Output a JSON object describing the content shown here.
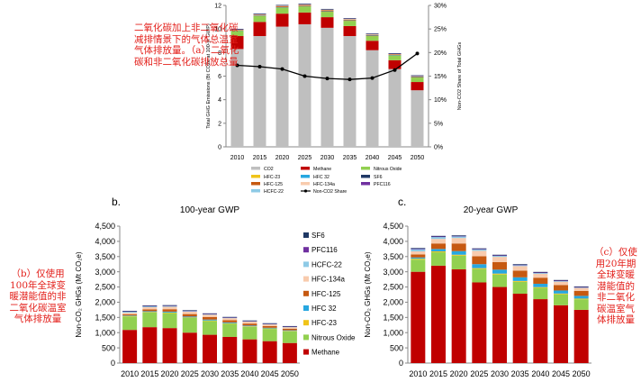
{
  "annotations": {
    "a": "二氧化碳加上非二氧化碳减排情景下的气体总温室气体排放量。（a）二氧化碳和非二氧化碳排放总量",
    "b": "（b）仅使用100年全球变暖潜能值的非二氧化碳温室气体排放量",
    "c": "（c）仅使用20年期全球变暖潜能值的非二氧化碳温室气体排放量"
  },
  "colors": {
    "CO2": "#bfbfbf",
    "Methane": "#c00000",
    "Nitrous Oxide": "#92d050",
    "HFC-23": "#f0c419",
    "HFC 32": "#27a7e0",
    "HFC-125": "#c65911",
    "HFC-134a": "#f8cbad",
    "HCFC-22": "#8ecae6",
    "PFC116": "#7030a0",
    "SF6": "#1f3864",
    "Non-CO2 Share": "#000000"
  },
  "chart_data": [
    {
      "id": "a",
      "type": "bar",
      "panel_label": "",
      "title": "",
      "categories": [
        "2010",
        "2015",
        "2020",
        "2025",
        "2030",
        "2035",
        "2040",
        "2045",
        "2050"
      ],
      "ylabel": "Total GHG Emissions (Bt CO2e at 100-yr GWP)",
      "y2label": "Non-CO2 Share of Total GHGs",
      "ylim": [
        0,
        12
      ],
      "yticks": [
        0,
        2,
        4,
        6,
        8,
        10,
        12
      ],
      "y2lim": [
        0,
        30
      ],
      "y2ticks": [
        "0%",
        "5%",
        "10%",
        "15%",
        "20%",
        "25%",
        "30%"
      ],
      "stacked": true,
      "series": [
        {
          "name": "CO2",
          "values": [
            8.3,
            9.4,
            10.2,
            10.4,
            10.1,
            9.4,
            8.2,
            6.6,
            4.8
          ]
        },
        {
          "name": "Methane",
          "values": [
            1.1,
            1.2,
            1.1,
            1.0,
            0.9,
            0.85,
            0.8,
            0.75,
            0.7
          ]
        },
        {
          "name": "Nitrous Oxide",
          "values": [
            0.45,
            0.5,
            0.5,
            0.5,
            0.45,
            0.43,
            0.4,
            0.4,
            0.38
          ]
        },
        {
          "name": "HFC-23",
          "values": [
            0.02,
            0.02,
            0.02,
            0.02,
            0.02,
            0.02,
            0.02,
            0.02,
            0.02
          ]
        },
        {
          "name": "HFC 32",
          "values": [
            0.01,
            0.02,
            0.03,
            0.03,
            0.03,
            0.03,
            0.02,
            0.02,
            0.02
          ]
        },
        {
          "name": "HFC-125",
          "values": [
            0.03,
            0.05,
            0.07,
            0.08,
            0.08,
            0.07,
            0.06,
            0.05,
            0.05
          ]
        },
        {
          "name": "HFC-134a",
          "values": [
            0.05,
            0.07,
            0.08,
            0.08,
            0.08,
            0.07,
            0.07,
            0.06,
            0.06
          ]
        },
        {
          "name": "HCFC-22",
          "values": [
            0.03,
            0.03,
            0.02,
            0.02,
            0.02,
            0.02,
            0.02,
            0.02,
            0.02
          ]
        },
        {
          "name": "PFC116",
          "values": [
            0.01,
            0.01,
            0.01,
            0.01,
            0.01,
            0.01,
            0.01,
            0.01,
            0.01
          ]
        },
        {
          "name": "SF6",
          "values": [
            0.01,
            0.01,
            0.01,
            0.01,
            0.01,
            0.01,
            0.01,
            0.01,
            0.01
          ]
        }
      ],
      "line": {
        "name": "Non-CO2 Share",
        "axis": "y2",
        "values": [
          17.3,
          17.0,
          16.5,
          15.0,
          14.5,
          14.3,
          14.6,
          16.3,
          19.8
        ]
      },
      "legend_order": [
        "CO2",
        "Methane",
        "Nitrous Oxide",
        "HFC-23",
        "HFC 32",
        "SF6",
        "HFC-125",
        "HFC-134a",
        "PFC116",
        "HCFC-22",
        "Non-CO2 Share"
      ],
      "legend": "bottom"
    },
    {
      "id": "b",
      "type": "bar",
      "panel_label": "b.",
      "title": "100-year GWP",
      "categories": [
        "2010",
        "2015",
        "2020",
        "2025",
        "2030",
        "2035",
        "2040",
        "2045",
        "2050"
      ],
      "ylabel": "Non-CO₂ GHGs (Mt CO₂e)",
      "ylim": [
        0,
        4500
      ],
      "yticks": [
        "0",
        "500",
        "1,000",
        "1,500",
        "2,000",
        "2,500",
        "3,000",
        "3,500",
        "4,000",
        "4,500"
      ],
      "stacked": true,
      "series": [
        {
          "name": "Methane",
          "values": [
            1090,
            1180,
            1150,
            1000,
            930,
            860,
            780,
            720,
            660
          ]
        },
        {
          "name": "Nitrous Oxide",
          "values": [
            440,
            480,
            490,
            480,
            450,
            430,
            410,
            400,
            380
          ]
        },
        {
          "name": "HFC-23",
          "values": [
            20,
            20,
            20,
            20,
            20,
            18,
            18,
            18,
            18
          ]
        },
        {
          "name": "HFC 32",
          "values": [
            15,
            25,
            30,
            30,
            30,
            28,
            25,
            22,
            20
          ]
        },
        {
          "name": "HFC-125",
          "values": [
            40,
            60,
            80,
            80,
            80,
            70,
            65,
            55,
            50
          ]
        },
        {
          "name": "HFC-134a",
          "values": [
            50,
            70,
            80,
            80,
            80,
            70,
            65,
            60,
            55
          ]
        },
        {
          "name": "HCFC-22",
          "values": [
            40,
            35,
            30,
            25,
            20,
            18,
            15,
            13,
            12
          ]
        },
        {
          "name": "PFC116",
          "values": [
            10,
            10,
            10,
            10,
            10,
            10,
            10,
            10,
            10
          ]
        },
        {
          "name": "SF6",
          "values": [
            10,
            12,
            14,
            14,
            14,
            13,
            12,
            12,
            11
          ]
        }
      ],
      "legend_order": [
        "SF6",
        "PFC116",
        "HCFC-22",
        "HFC-134a",
        "HFC-125",
        "HFC 32",
        "HFC-23",
        "Nitrous Oxide",
        "Methane"
      ],
      "legend": "right"
    },
    {
      "id": "c",
      "type": "bar",
      "panel_label": "c.",
      "title": "20-year GWP",
      "categories": [
        "2010",
        "2015",
        "2020",
        "2025",
        "2030",
        "2035",
        "2040",
        "2045",
        "2050"
      ],
      "ylabel": "Non-CO₂ GHGs (Mt CO₂e)",
      "ylim": [
        0,
        4500
      ],
      "yticks": [
        "0",
        "500",
        "1,000",
        "1,500",
        "2,000",
        "2,500",
        "3,000",
        "3,500",
        "4,000",
        "4,500"
      ],
      "stacked": true,
      "series": [
        {
          "name": "Methane",
          "values": [
            3000,
            3200,
            3080,
            2650,
            2500,
            2280,
            2100,
            1900,
            1750
          ]
        },
        {
          "name": "Nitrous Oxide",
          "values": [
            400,
            440,
            450,
            440,
            410,
            390,
            370,
            360,
            345
          ]
        },
        {
          "name": "HFC-23",
          "values": [
            30,
            30,
            30,
            30,
            30,
            28,
            26,
            25,
            24
          ]
        },
        {
          "name": "HFC 32",
          "values": [
            40,
            80,
            120,
            130,
            130,
            120,
            110,
            100,
            90
          ]
        },
        {
          "name": "HFC-125",
          "values": [
            100,
            180,
            250,
            260,
            250,
            220,
            200,
            180,
            160
          ]
        },
        {
          "name": "HFC-134a",
          "values": [
            100,
            150,
            180,
            180,
            170,
            150,
            130,
            110,
            100
          ]
        },
        {
          "name": "HCFC-22",
          "values": [
            80,
            70,
            60,
            50,
            40,
            35,
            30,
            25,
            20
          ]
        },
        {
          "name": "PFC116",
          "values": [
            10,
            10,
            10,
            10,
            10,
            10,
            10,
            10,
            10
          ]
        },
        {
          "name": "SF6",
          "values": [
            20,
            20,
            20,
            20,
            20,
            20,
            20,
            20,
            20
          ]
        }
      ],
      "legend": "none"
    }
  ]
}
